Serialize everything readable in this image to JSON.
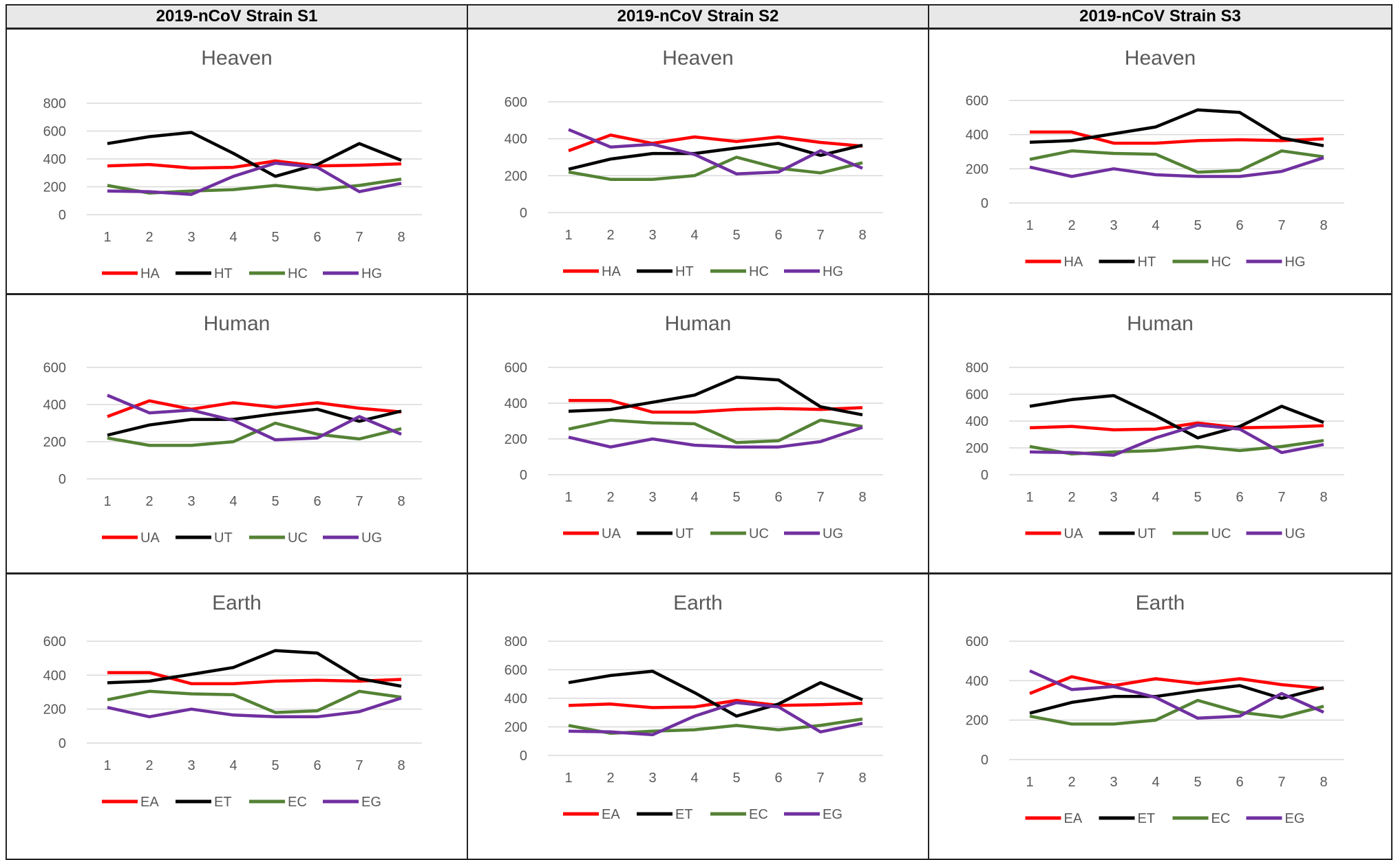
{
  "headers": [
    "2019-nCoV Strain S1",
    "2019-nCoV Strain S2",
    "2019-nCoV Strain S3"
  ],
  "chart_data": [
    {
      "type": "line",
      "title": "Heaven",
      "categories": [
        1,
        2,
        3,
        4,
        5,
        6,
        7,
        8
      ],
      "ylim": [
        0,
        800
      ],
      "yticks": [
        0,
        200,
        400,
        600,
        800
      ],
      "grid": true,
      "legend": "bottom",
      "series": [
        {
          "name": "HA",
          "color": "#ff0000",
          "values": [
            350,
            360,
            335,
            340,
            385,
            350,
            355,
            365
          ]
        },
        {
          "name": "HT",
          "color": "#000000",
          "values": [
            510,
            560,
            590,
            440,
            275,
            360,
            510,
            390
          ]
        },
        {
          "name": "HC",
          "color": "#548235",
          "values": [
            210,
            155,
            170,
            180,
            210,
            180,
            210,
            255
          ]
        },
        {
          "name": "HG",
          "color": "#7030a0",
          "values": [
            170,
            165,
            145,
            275,
            370,
            340,
            165,
            225
          ]
        }
      ]
    },
    {
      "type": "line",
      "title": "Heaven",
      "categories": [
        1,
        2,
        3,
        4,
        5,
        6,
        7,
        8
      ],
      "ylim": [
        0,
        600
      ],
      "yticks": [
        0,
        200,
        400,
        600
      ],
      "grid": true,
      "legend": "bottom",
      "series": [
        {
          "name": "HA",
          "color": "#ff0000",
          "values": [
            335,
            420,
            375,
            410,
            385,
            410,
            380,
            360
          ]
        },
        {
          "name": "HT",
          "color": "#000000",
          "values": [
            235,
            290,
            320,
            320,
            350,
            375,
            310,
            365
          ]
        },
        {
          "name": "HC",
          "color": "#548235",
          "values": [
            220,
            180,
            180,
            200,
            300,
            240,
            215,
            270
          ]
        },
        {
          "name": "HG",
          "color": "#7030a0",
          "values": [
            450,
            355,
            370,
            315,
            210,
            220,
            335,
            240
          ]
        }
      ]
    },
    {
      "type": "line",
      "title": "Heaven",
      "categories": [
        1,
        2,
        3,
        4,
        5,
        6,
        7,
        8
      ],
      "ylim": [
        0,
        600
      ],
      "yticks": [
        0,
        200,
        400,
        600
      ],
      "grid": true,
      "legend": "bottom",
      "series": [
        {
          "name": "HA",
          "color": "#ff0000",
          "values": [
            415,
            415,
            350,
            350,
            365,
            370,
            365,
            375
          ]
        },
        {
          "name": "HT",
          "color": "#000000",
          "values": [
            355,
            365,
            405,
            445,
            545,
            530,
            380,
            335
          ]
        },
        {
          "name": "HC",
          "color": "#548235",
          "values": [
            255,
            305,
            290,
            285,
            180,
            190,
            305,
            270
          ]
        },
        {
          "name": "HG",
          "color": "#7030a0",
          "values": [
            210,
            155,
            200,
            165,
            155,
            155,
            185,
            265
          ]
        }
      ]
    },
    {
      "type": "line",
      "title": "Human",
      "categories": [
        1,
        2,
        3,
        4,
        5,
        6,
        7,
        8
      ],
      "ylim": [
        0,
        600
      ],
      "yticks": [
        0,
        200,
        400,
        600
      ],
      "grid": true,
      "legend": "bottom",
      "series": [
        {
          "name": "UA",
          "color": "#ff0000",
          "values": [
            335,
            420,
            375,
            410,
            385,
            410,
            380,
            360
          ]
        },
        {
          "name": "UT",
          "color": "#000000",
          "values": [
            235,
            290,
            320,
            320,
            350,
            375,
            310,
            365
          ]
        },
        {
          "name": "UC",
          "color": "#548235",
          "values": [
            220,
            180,
            180,
            200,
            300,
            240,
            215,
            270
          ]
        },
        {
          "name": "UG",
          "color": "#7030a0",
          "values": [
            450,
            355,
            370,
            315,
            210,
            220,
            335,
            240
          ]
        }
      ]
    },
    {
      "type": "line",
      "title": "Human",
      "categories": [
        1,
        2,
        3,
        4,
        5,
        6,
        7,
        8
      ],
      "ylim": [
        0,
        600
      ],
      "yticks": [
        0,
        200,
        400,
        600
      ],
      "grid": true,
      "legend": "bottom",
      "series": [
        {
          "name": "UA",
          "color": "#ff0000",
          "values": [
            415,
            415,
            350,
            350,
            365,
            370,
            365,
            375
          ]
        },
        {
          "name": "UT",
          "color": "#000000",
          "values": [
            355,
            365,
            405,
            445,
            545,
            530,
            380,
            335
          ]
        },
        {
          "name": "UC",
          "color": "#548235",
          "values": [
            255,
            305,
            290,
            285,
            180,
            190,
            305,
            270
          ]
        },
        {
          "name": "UG",
          "color": "#7030a0",
          "values": [
            210,
            155,
            200,
            165,
            155,
            155,
            185,
            265
          ]
        }
      ]
    },
    {
      "type": "line",
      "title": "Human",
      "categories": [
        1,
        2,
        3,
        4,
        5,
        6,
        7,
        8
      ],
      "ylim": [
        0,
        800
      ],
      "yticks": [
        0,
        200,
        400,
        600,
        800
      ],
      "grid": true,
      "legend": "bottom",
      "series": [
        {
          "name": "UA",
          "color": "#ff0000",
          "values": [
            350,
            360,
            335,
            340,
            385,
            350,
            355,
            365
          ]
        },
        {
          "name": "UT",
          "color": "#000000",
          "values": [
            510,
            560,
            590,
            440,
            275,
            360,
            510,
            390
          ]
        },
        {
          "name": "UC",
          "color": "#548235",
          "values": [
            210,
            155,
            170,
            180,
            210,
            180,
            210,
            255
          ]
        },
        {
          "name": "UG",
          "color": "#7030a0",
          "values": [
            170,
            165,
            145,
            275,
            370,
            340,
            165,
            225
          ]
        }
      ]
    },
    {
      "type": "line",
      "title": "Earth",
      "categories": [
        1,
        2,
        3,
        4,
        5,
        6,
        7,
        8
      ],
      "ylim": [
        0,
        600
      ],
      "yticks": [
        0,
        200,
        400,
        600
      ],
      "grid": true,
      "legend": "bottom",
      "series": [
        {
          "name": "EA",
          "color": "#ff0000",
          "values": [
            415,
            415,
            350,
            350,
            365,
            370,
            365,
            375
          ]
        },
        {
          "name": "ET",
          "color": "#000000",
          "values": [
            355,
            365,
            405,
            445,
            545,
            530,
            380,
            335
          ]
        },
        {
          "name": "EC",
          "color": "#548235",
          "values": [
            255,
            305,
            290,
            285,
            180,
            190,
            305,
            270
          ]
        },
        {
          "name": "EG",
          "color": "#7030a0",
          "values": [
            210,
            155,
            200,
            165,
            155,
            155,
            185,
            265
          ]
        }
      ]
    },
    {
      "type": "line",
      "title": "Earth",
      "categories": [
        1,
        2,
        3,
        4,
        5,
        6,
        7,
        8
      ],
      "ylim": [
        0,
        800
      ],
      "yticks": [
        0,
        200,
        400,
        600,
        800
      ],
      "grid": true,
      "legend": "bottom",
      "series": [
        {
          "name": "EA",
          "color": "#ff0000",
          "values": [
            350,
            360,
            335,
            340,
            385,
            350,
            355,
            365
          ]
        },
        {
          "name": "ET",
          "color": "#000000",
          "values": [
            510,
            560,
            590,
            440,
            275,
            360,
            510,
            390
          ]
        },
        {
          "name": "EC",
          "color": "#548235",
          "values": [
            210,
            155,
            170,
            180,
            210,
            180,
            210,
            255
          ]
        },
        {
          "name": "EG",
          "color": "#7030a0",
          "values": [
            170,
            165,
            145,
            275,
            370,
            340,
            165,
            225
          ]
        }
      ]
    },
    {
      "type": "line",
      "title": "Earth",
      "categories": [
        1,
        2,
        3,
        4,
        5,
        6,
        7,
        8
      ],
      "ylim": [
        0,
        600
      ],
      "yticks": [
        0,
        200,
        400,
        600
      ],
      "grid": true,
      "legend": "bottom",
      "series": [
        {
          "name": "EA",
          "color": "#ff0000",
          "values": [
            335,
            420,
            375,
            410,
            385,
            410,
            380,
            360
          ]
        },
        {
          "name": "ET",
          "color": "#000000",
          "values": [
            235,
            290,
            320,
            320,
            350,
            375,
            310,
            365
          ]
        },
        {
          "name": "EC",
          "color": "#548235",
          "values": [
            220,
            180,
            180,
            200,
            300,
            240,
            215,
            270
          ]
        },
        {
          "name": "EG",
          "color": "#7030a0",
          "values": [
            450,
            355,
            370,
            315,
            210,
            220,
            335,
            240
          ]
        }
      ]
    }
  ]
}
